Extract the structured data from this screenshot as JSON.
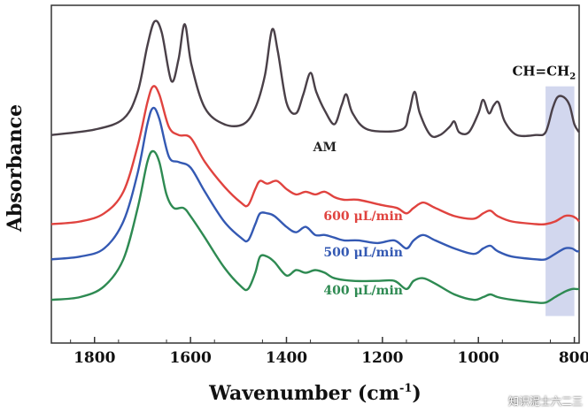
{
  "chart_data": {
    "type": "line",
    "xlabel_main": "Wavenumber (cm",
    "xlabel_sup": "-1",
    "xlabel_close": ")",
    "ylabel": "Absorbance",
    "xlim": [
      1890,
      790
    ],
    "x_reversed": true,
    "x_ticks": [
      1800,
      1600,
      1400,
      1200,
      1000,
      800
    ],
    "y_ticks_shown": false,
    "annotation": {
      "text_main": "CH=CH",
      "text_sub": "2",
      "band": [
        860,
        800
      ],
      "band_color": "#c7cdea"
    },
    "series": [
      {
        "name": "AM",
        "color": "#4a4048",
        "label_at": [
          1320,
          0.46
        ],
        "label_color": "#222222",
        "points": [
          [
            1890,
            0.52
          ],
          [
            1800,
            0.54
          ],
          [
            1740,
            0.58
          ],
          [
            1710,
            0.68
          ],
          [
            1690,
            0.85
          ],
          [
            1675,
            0.94
          ],
          [
            1660,
            0.9
          ],
          [
            1640,
            0.72
          ],
          [
            1625,
            0.8
          ],
          [
            1612,
            0.93
          ],
          [
            1598,
            0.78
          ],
          [
            1570,
            0.62
          ],
          [
            1530,
            0.56
          ],
          [
            1490,
            0.56
          ],
          [
            1465,
            0.62
          ],
          [
            1445,
            0.74
          ],
          [
            1430,
            0.91
          ],
          [
            1418,
            0.83
          ],
          [
            1400,
            0.64
          ],
          [
            1380,
            0.6
          ],
          [
            1365,
            0.67
          ],
          [
            1350,
            0.75
          ],
          [
            1338,
            0.68
          ],
          [
            1320,
            0.61
          ],
          [
            1300,
            0.56
          ],
          [
            1285,
            0.63
          ],
          [
            1275,
            0.67
          ],
          [
            1262,
            0.6
          ],
          [
            1230,
            0.54
          ],
          [
            1160,
            0.54
          ],
          [
            1145,
            0.6
          ],
          [
            1133,
            0.68
          ],
          [
            1122,
            0.6
          ],
          [
            1100,
            0.52
          ],
          [
            1080,
            0.52
          ],
          [
            1060,
            0.55
          ],
          [
            1050,
            0.57
          ],
          [
            1040,
            0.53
          ],
          [
            1020,
            0.53
          ],
          [
            1000,
            0.6
          ],
          [
            990,
            0.65
          ],
          [
            978,
            0.6
          ],
          [
            968,
            0.63
          ],
          [
            958,
            0.64
          ],
          [
            945,
            0.57
          ],
          [
            920,
            0.52
          ],
          [
            880,
            0.52
          ],
          [
            860,
            0.53
          ],
          [
            845,
            0.62
          ],
          [
            835,
            0.66
          ],
          [
            822,
            0.66
          ],
          [
            810,
            0.63
          ],
          [
            800,
            0.56
          ],
          [
            790,
            0.53
          ]
        ]
      },
      {
        "name": "600 μL/min",
        "color": "#e0433f",
        "label_at": [
          1240,
          0.205
        ],
        "label_color": "#e0433f",
        "points": [
          [
            1890,
            0.19
          ],
          [
            1830,
            0.2
          ],
          [
            1780,
            0.23
          ],
          [
            1740,
            0.31
          ],
          [
            1710,
            0.48
          ],
          [
            1690,
            0.64
          ],
          [
            1678,
            0.7
          ],
          [
            1665,
            0.67
          ],
          [
            1645,
            0.55
          ],
          [
            1625,
            0.52
          ],
          [
            1600,
            0.51
          ],
          [
            1570,
            0.42
          ],
          [
            1530,
            0.33
          ],
          [
            1495,
            0.27
          ],
          [
            1480,
            0.26
          ],
          [
            1465,
            0.32
          ],
          [
            1455,
            0.35
          ],
          [
            1440,
            0.34
          ],
          [
            1420,
            0.35
          ],
          [
            1400,
            0.32
          ],
          [
            1380,
            0.3
          ],
          [
            1360,
            0.31
          ],
          [
            1340,
            0.3
          ],
          [
            1320,
            0.31
          ],
          [
            1300,
            0.29
          ],
          [
            1280,
            0.28
          ],
          [
            1250,
            0.28
          ],
          [
            1200,
            0.26
          ],
          [
            1170,
            0.25
          ],
          [
            1150,
            0.23
          ],
          [
            1135,
            0.25
          ],
          [
            1115,
            0.27
          ],
          [
            1090,
            0.25
          ],
          [
            1050,
            0.22
          ],
          [
            1010,
            0.21
          ],
          [
            990,
            0.23
          ],
          [
            975,
            0.24
          ],
          [
            960,
            0.22
          ],
          [
            930,
            0.2
          ],
          [
            880,
            0.19
          ],
          [
            860,
            0.19
          ],
          [
            840,
            0.2
          ],
          [
            820,
            0.22
          ],
          [
            805,
            0.22
          ],
          [
            795,
            0.21
          ],
          [
            790,
            0.2
          ]
        ]
      },
      {
        "name": "500 μL/min",
        "color": "#3459b3",
        "label_at": [
          1240,
          0.07
        ],
        "label_color": "#3459b3",
        "points": [
          [
            1890,
            0.06
          ],
          [
            1830,
            0.07
          ],
          [
            1780,
            0.1
          ],
          [
            1740,
            0.2
          ],
          [
            1710,
            0.38
          ],
          [
            1690,
            0.56
          ],
          [
            1678,
            0.62
          ],
          [
            1665,
            0.58
          ],
          [
            1645,
            0.44
          ],
          [
            1625,
            0.42
          ],
          [
            1600,
            0.4
          ],
          [
            1570,
            0.31
          ],
          [
            1530,
            0.2
          ],
          [
            1495,
            0.14
          ],
          [
            1480,
            0.13
          ],
          [
            1465,
            0.19
          ],
          [
            1455,
            0.23
          ],
          [
            1440,
            0.23
          ],
          [
            1425,
            0.22
          ],
          [
            1400,
            0.18
          ],
          [
            1380,
            0.16
          ],
          [
            1360,
            0.18
          ],
          [
            1340,
            0.15
          ],
          [
            1320,
            0.15
          ],
          [
            1300,
            0.14
          ],
          [
            1280,
            0.13
          ],
          [
            1250,
            0.13
          ],
          [
            1210,
            0.12
          ],
          [
            1175,
            0.13
          ],
          [
            1150,
            0.1
          ],
          [
            1135,
            0.13
          ],
          [
            1115,
            0.15
          ],
          [
            1090,
            0.13
          ],
          [
            1050,
            0.1
          ],
          [
            1010,
            0.08
          ],
          [
            990,
            0.1
          ],
          [
            975,
            0.11
          ],
          [
            960,
            0.09
          ],
          [
            930,
            0.07
          ],
          [
            880,
            0.06
          ],
          [
            860,
            0.06
          ],
          [
            840,
            0.08
          ],
          [
            820,
            0.1
          ],
          [
            805,
            0.1
          ],
          [
            795,
            0.09
          ],
          [
            790,
            0.09
          ]
        ]
      },
      {
        "name": "400 μL/min",
        "color": "#2e8a52",
        "label_at": [
          1240,
          -0.07
        ],
        "label_color": "#2e8a52",
        "points": [
          [
            1890,
            -0.09
          ],
          [
            1830,
            -0.08
          ],
          [
            1780,
            -0.04
          ],
          [
            1740,
            0.06
          ],
          [
            1710,
            0.25
          ],
          [
            1690,
            0.42
          ],
          [
            1678,
            0.46
          ],
          [
            1665,
            0.42
          ],
          [
            1650,
            0.3
          ],
          [
            1635,
            0.25
          ],
          [
            1615,
            0.25
          ],
          [
            1600,
            0.22
          ],
          [
            1570,
            0.14
          ],
          [
            1530,
            0.03
          ],
          [
            1495,
            -0.04
          ],
          [
            1480,
            -0.05
          ],
          [
            1465,
            0.01
          ],
          [
            1455,
            0.07
          ],
          [
            1440,
            0.07
          ],
          [
            1425,
            0.05
          ],
          [
            1400,
            0.0
          ],
          [
            1380,
            0.02
          ],
          [
            1360,
            0.01
          ],
          [
            1340,
            0.02
          ],
          [
            1320,
            0.01
          ],
          [
            1300,
            -0.01
          ],
          [
            1260,
            -0.02
          ],
          [
            1210,
            -0.02
          ],
          [
            1175,
            -0.02
          ],
          [
            1150,
            -0.05
          ],
          [
            1135,
            -0.02
          ],
          [
            1115,
            -0.01
          ],
          [
            1090,
            -0.03
          ],
          [
            1050,
            -0.07
          ],
          [
            1010,
            -0.09
          ],
          [
            990,
            -0.08
          ],
          [
            975,
            -0.07
          ],
          [
            960,
            -0.08
          ],
          [
            930,
            -0.09
          ],
          [
            880,
            -0.1
          ],
          [
            860,
            -0.1
          ],
          [
            840,
            -0.08
          ],
          [
            820,
            -0.06
          ],
          [
            805,
            -0.05
          ],
          [
            795,
            -0.05
          ],
          [
            790,
            -0.05
          ]
        ]
      }
    ]
  },
  "watermark": "知识泥士六二三"
}
